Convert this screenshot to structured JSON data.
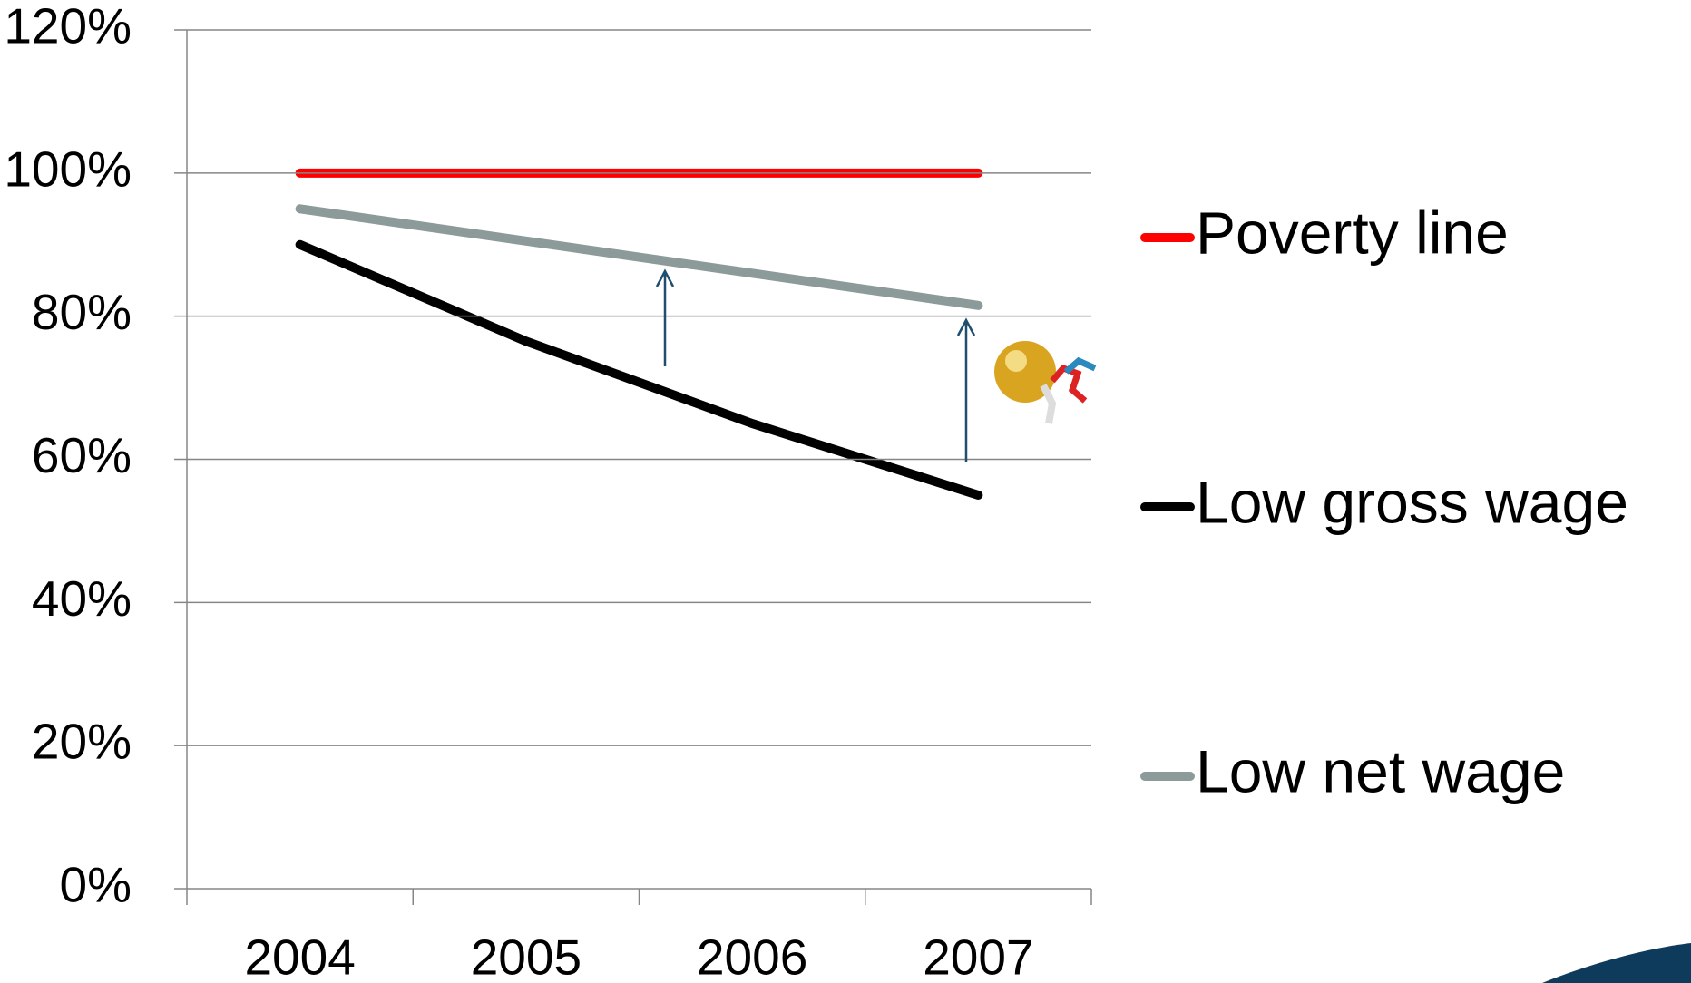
{
  "chart_data": {
    "type": "line",
    "categories": [
      "2004",
      "2005",
      "2006",
      "2007"
    ],
    "series": [
      {
        "name": "Poverty line",
        "color": "#ff0000",
        "values": [
          100,
          100,
          100,
          100
        ]
      },
      {
        "name": "Low gross wage",
        "color": "#000000",
        "values": [
          90,
          76.5,
          65,
          55
        ]
      },
      {
        "name": "Low net wage",
        "color": "#8c9a9a",
        "values": [
          95,
          90.5,
          86,
          81.5
        ]
      }
    ],
    "ylim": [
      0,
      120
    ],
    "yticks": [
      {
        "value": 0,
        "label": "0%"
      },
      {
        "value": 20,
        "label": "20%"
      },
      {
        "value": 40,
        "label": "40%"
      },
      {
        "value": 60,
        "label": "60%"
      },
      {
        "value": 80,
        "label": "80%"
      },
      {
        "value": 100,
        "label": "100%"
      },
      {
        "value": 120,
        "label": "120%"
      }
    ],
    "grid": true,
    "legend": "right"
  }
}
